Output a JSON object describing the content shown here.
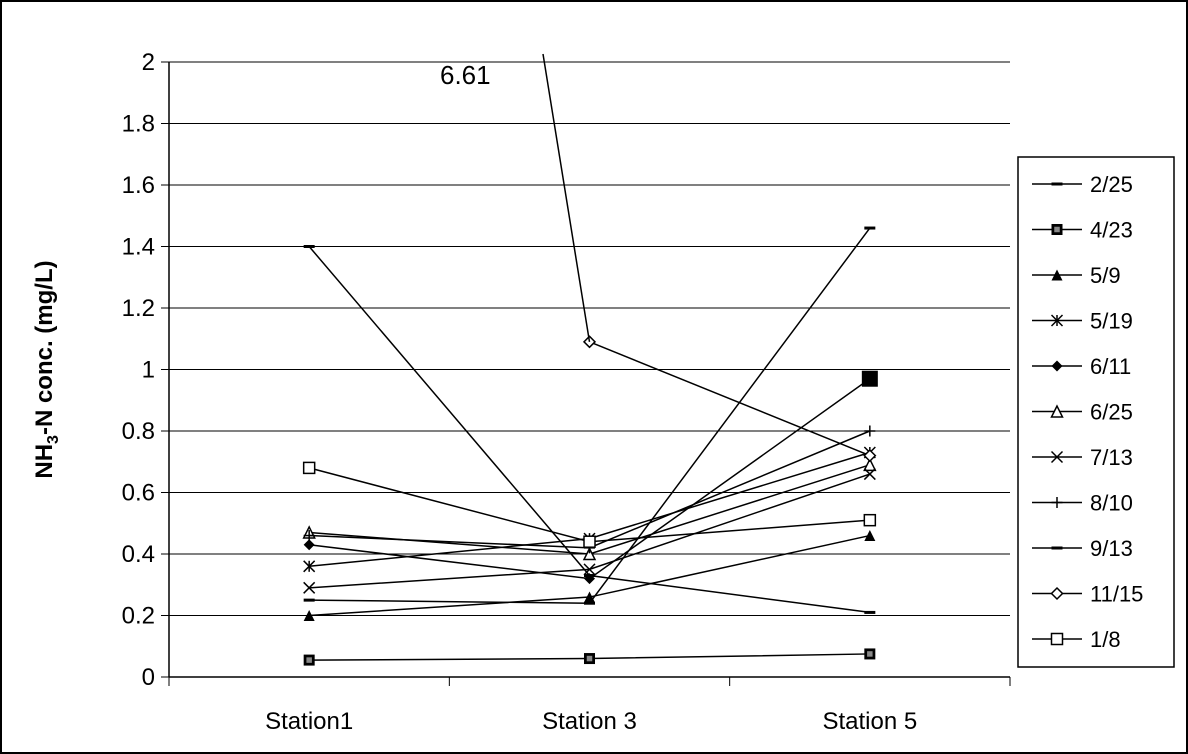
{
  "chart_data": {
    "type": "line",
    "categories": [
      "Station1",
      "Station 3",
      "Station 5"
    ],
    "ylabel_main": "NH",
    "ylabel_sub": "3",
    "ylabel_rest": "-N conc. (mg/L)",
    "ylim": [
      0,
      2
    ],
    "yticks": [
      "0",
      "0.2",
      "0.4",
      "0.6",
      "0.8",
      "1",
      "1.2",
      "1.4",
      "1.6",
      "1.8",
      "2"
    ],
    "grid": true,
    "legend_position": "right",
    "annotation": "6.61",
    "series": [
      {
        "name": "2/25",
        "marker": "dash",
        "values": [
          1.4,
          0.33,
          0.21
        ]
      },
      {
        "name": "4/23",
        "marker": "square-filled",
        "values": [
          0.055,
          0.06,
          0.075
        ]
      },
      {
        "name": "5/9",
        "marker": "triangle-filled",
        "values": [
          0.2,
          0.26,
          0.46
        ]
      },
      {
        "name": "5/19",
        "marker": "asterisk",
        "values": [
          0.36,
          0.45,
          0.73
        ]
      },
      {
        "name": "6/11",
        "marker": "diamond-filled",
        "values": [
          0.43,
          0.32,
          0.97
        ]
      },
      {
        "name": "6/25",
        "marker": "triangle-open",
        "values": [
          0.47,
          0.4,
          0.69
        ]
      },
      {
        "name": "7/13",
        "marker": "x",
        "values": [
          0.29,
          0.35,
          0.66
        ]
      },
      {
        "name": "8/10",
        "marker": "plus",
        "values": [
          0.46,
          0.42,
          0.8
        ]
      },
      {
        "name": "9/13",
        "marker": "dash",
        "values": [
          0.25,
          0.24,
          1.46
        ]
      },
      {
        "name": "11/15",
        "marker": "diamond-open",
        "values": [
          null,
          1.09,
          0.72
        ]
      },
      {
        "name": "1/8",
        "marker": "square-open",
        "values": [
          0.68,
          0.44,
          0.51
        ]
      }
    ],
    "offscale_series": {
      "name": "11/15",
      "from_value": 6.61,
      "to_value": 1.09
    }
  }
}
